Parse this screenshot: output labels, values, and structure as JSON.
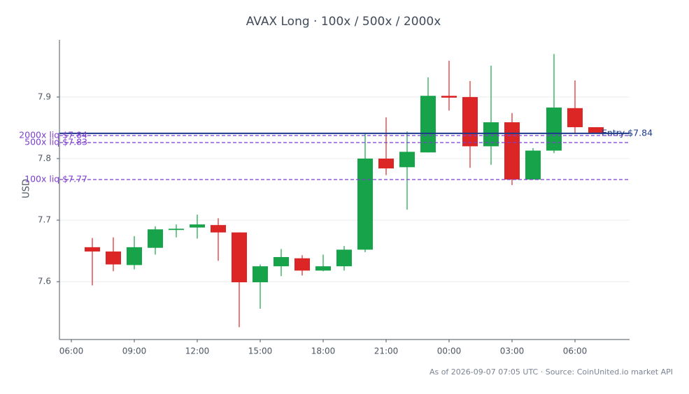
{
  "chart_data": {
    "type": "candlestick",
    "title": "AVAX Long · 100x / 500x / 2000x",
    "y_label": "USD",
    "footer": "As of 2026-09-07 07:05 UTC · Source: CoinUnited.io market API",
    "categories": [
      "06:00",
      null,
      null,
      "09:00",
      null,
      null,
      "12:00",
      null,
      null,
      "15:00",
      null,
      null,
      "18:00",
      null,
      null,
      "21:00",
      null,
      null,
      "00:00",
      null,
      null,
      "03:00",
      null,
      null,
      "06:00",
      null
    ],
    "open": [
      null,
      7.656,
      7.649,
      7.627,
      7.655,
      7.684,
      7.688,
      7.692,
      7.68,
      7.599,
      7.625,
      7.638,
      7.618,
      7.625,
      7.652,
      7.8,
      7.786,
      7.81,
      7.902,
      7.9,
      7.82,
      7.859,
      7.766,
      7.813,
      7.882,
      7.851
    ],
    "high": [
      null,
      7.671,
      7.672,
      7.674,
      7.69,
      7.693,
      7.709,
      7.703,
      7.68,
      7.628,
      7.653,
      7.643,
      7.644,
      7.658,
      7.841,
      7.867,
      7.844,
      7.932,
      7.959,
      7.926,
      7.951,
      7.874,
      7.817,
      7.97,
      7.927,
      7.851
    ],
    "low": [
      null,
      7.594,
      7.617,
      7.62,
      7.644,
      7.672,
      7.67,
      7.634,
      7.526,
      7.556,
      7.609,
      7.61,
      7.617,
      7.618,
      7.648,
      7.773,
      7.717,
      7.81,
      7.878,
      7.785,
      7.79,
      7.757,
      7.766,
      7.809,
      7.842,
      7.842
    ],
    "close": [
      null,
      7.649,
      7.628,
      7.656,
      7.685,
      7.686,
      7.693,
      7.68,
      7.599,
      7.625,
      7.64,
      7.618,
      7.625,
      7.652,
      7.8,
      7.784,
      7.811,
      7.902,
      7.899,
      7.82,
      7.859,
      7.766,
      7.813,
      7.883,
      7.851,
      7.842
    ],
    "up_color": "#16a34a",
    "down_color": "#dc2626",
    "ylim": [
      7.506,
      7.993
    ],
    "yticks": [
      7.6,
      7.7,
      7.8,
      7.9
    ],
    "grid": true,
    "levels": [
      {
        "label": "Entry $7.84",
        "value": 7.841,
        "color": "#1e3a8a",
        "style": "solid",
        "label_side": "right"
      },
      {
        "label": "2000x liq $7.84",
        "value": 7.8375,
        "color": "#7e3fce",
        "style": "dashed",
        "label_side": "left"
      },
      {
        "label": "500x liq $7.83",
        "value": 7.826,
        "color": "#7e3fce",
        "style": "dashed",
        "label_side": "left"
      },
      {
        "label": "100x liq $7.77",
        "value": 7.766,
        "color": "#7e3fce",
        "style": "dashed",
        "label_side": "left"
      }
    ]
  }
}
